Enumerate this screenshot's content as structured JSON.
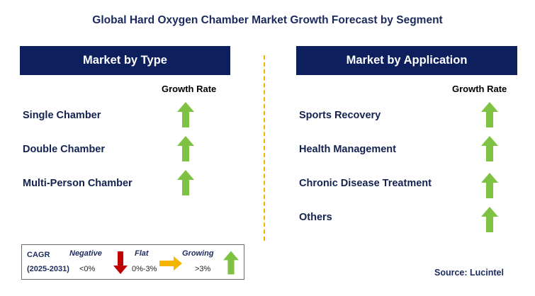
{
  "title": "Global Hard Oxygen Chamber Market  Growth Forecast by Segment",
  "left_panel": {
    "header": "Market by Type",
    "growth_label": "Growth Rate",
    "items": [
      {
        "label": "Single Chamber",
        "trend": "up-green-arrow-icon"
      },
      {
        "label": "Double Chamber",
        "trend": "up-green-arrow-icon"
      },
      {
        "label": "Multi-Person Chamber",
        "trend": "up-green-arrow-icon"
      }
    ]
  },
  "right_panel": {
    "header": "Market by Application",
    "growth_label": "Growth Rate",
    "items": [
      {
        "label": "Sports Recovery",
        "trend": "up-green-arrow-icon"
      },
      {
        "label": "Health Management",
        "trend": "up-green-arrow-icon"
      },
      {
        "label": "Chronic Disease Treatment",
        "trend": "up-green-arrow-icon"
      },
      {
        "label": "Others",
        "trend": "up-green-arrow-icon"
      }
    ]
  },
  "legend": {
    "cagr": "CAGR",
    "period": "(2025-2031)",
    "negative": {
      "label": "Negative",
      "range": "<0%"
    },
    "flat": {
      "label": "Flat",
      "range": "0%-3%"
    },
    "growing": {
      "label": "Growing",
      "range": ">3%"
    }
  },
  "source": "Source: Lucintel",
  "colors": {
    "header_bg": "#0d1f5c",
    "up_arrow": "#7dc242",
    "down_arrow": "#c00000",
    "flat_arrow": "#f5b400",
    "divider": "#f5b400"
  }
}
